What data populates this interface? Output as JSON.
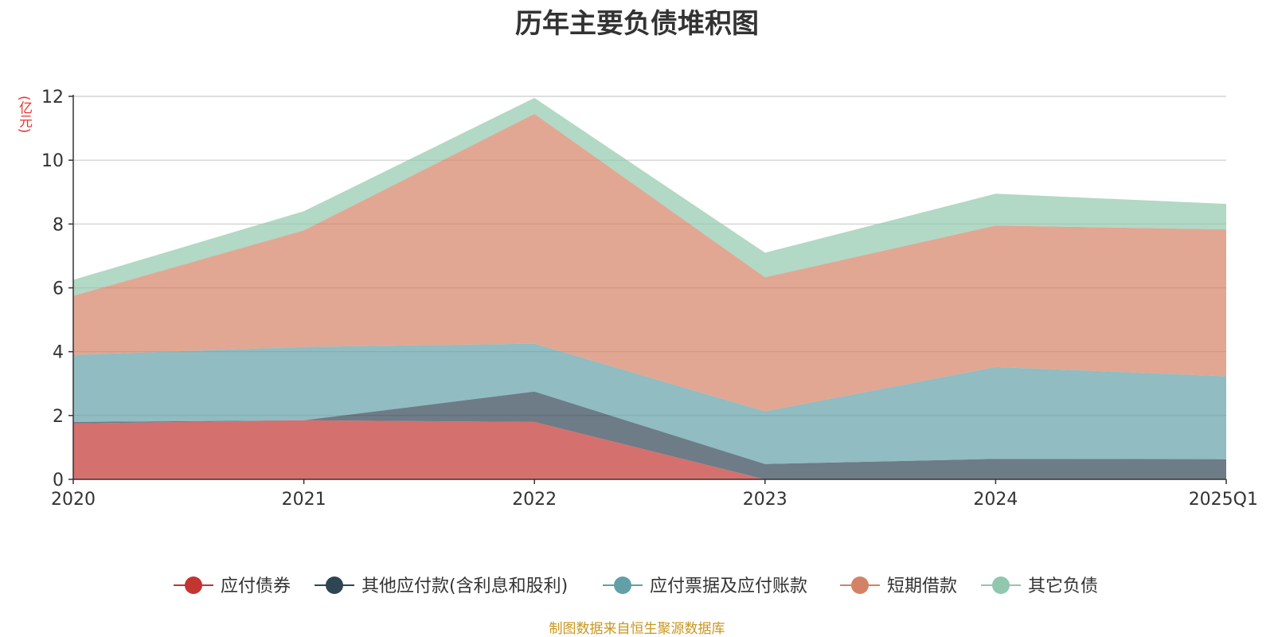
{
  "chart_data": {
    "type": "area",
    "stacked": true,
    "title": "历年主要负债堆积图",
    "unit_label": "(亿元)",
    "source_note": "制图数据来自恒生聚源数据库",
    "categories": [
      "2020",
      "2021",
      "2022",
      "2023",
      "2024",
      "2025Q1"
    ],
    "ylim": [
      0,
      12
    ],
    "yticks": [
      "0",
      "2",
      "4",
      "6",
      "8",
      "10",
      "12"
    ],
    "grid": true,
    "legend_position": "bottom",
    "series": [
      {
        "name": "应付债券",
        "color": "#c23531",
        "values": [
          1.75,
          1.85,
          1.8,
          0.0,
          0.0,
          0.0
        ]
      },
      {
        "name": "其他应付款(含利息和股利)",
        "color": "#2f4554",
        "values": [
          0.05,
          0.0,
          0.95,
          0.48,
          0.64,
          0.63
        ]
      },
      {
        "name": "应付票据及应付账款",
        "color": "#61a0a8",
        "values": [
          2.1,
          2.3,
          1.5,
          1.65,
          2.88,
          2.6
        ]
      },
      {
        "name": "短期借款",
        "color": "#d48265",
        "values": [
          1.85,
          3.65,
          7.2,
          4.2,
          4.43,
          4.6
        ]
      },
      {
        "name": "其它负债",
        "color": "#91c7ae",
        "values": [
          0.5,
          0.6,
          0.5,
          0.77,
          1.0,
          0.8
        ]
      }
    ]
  }
}
